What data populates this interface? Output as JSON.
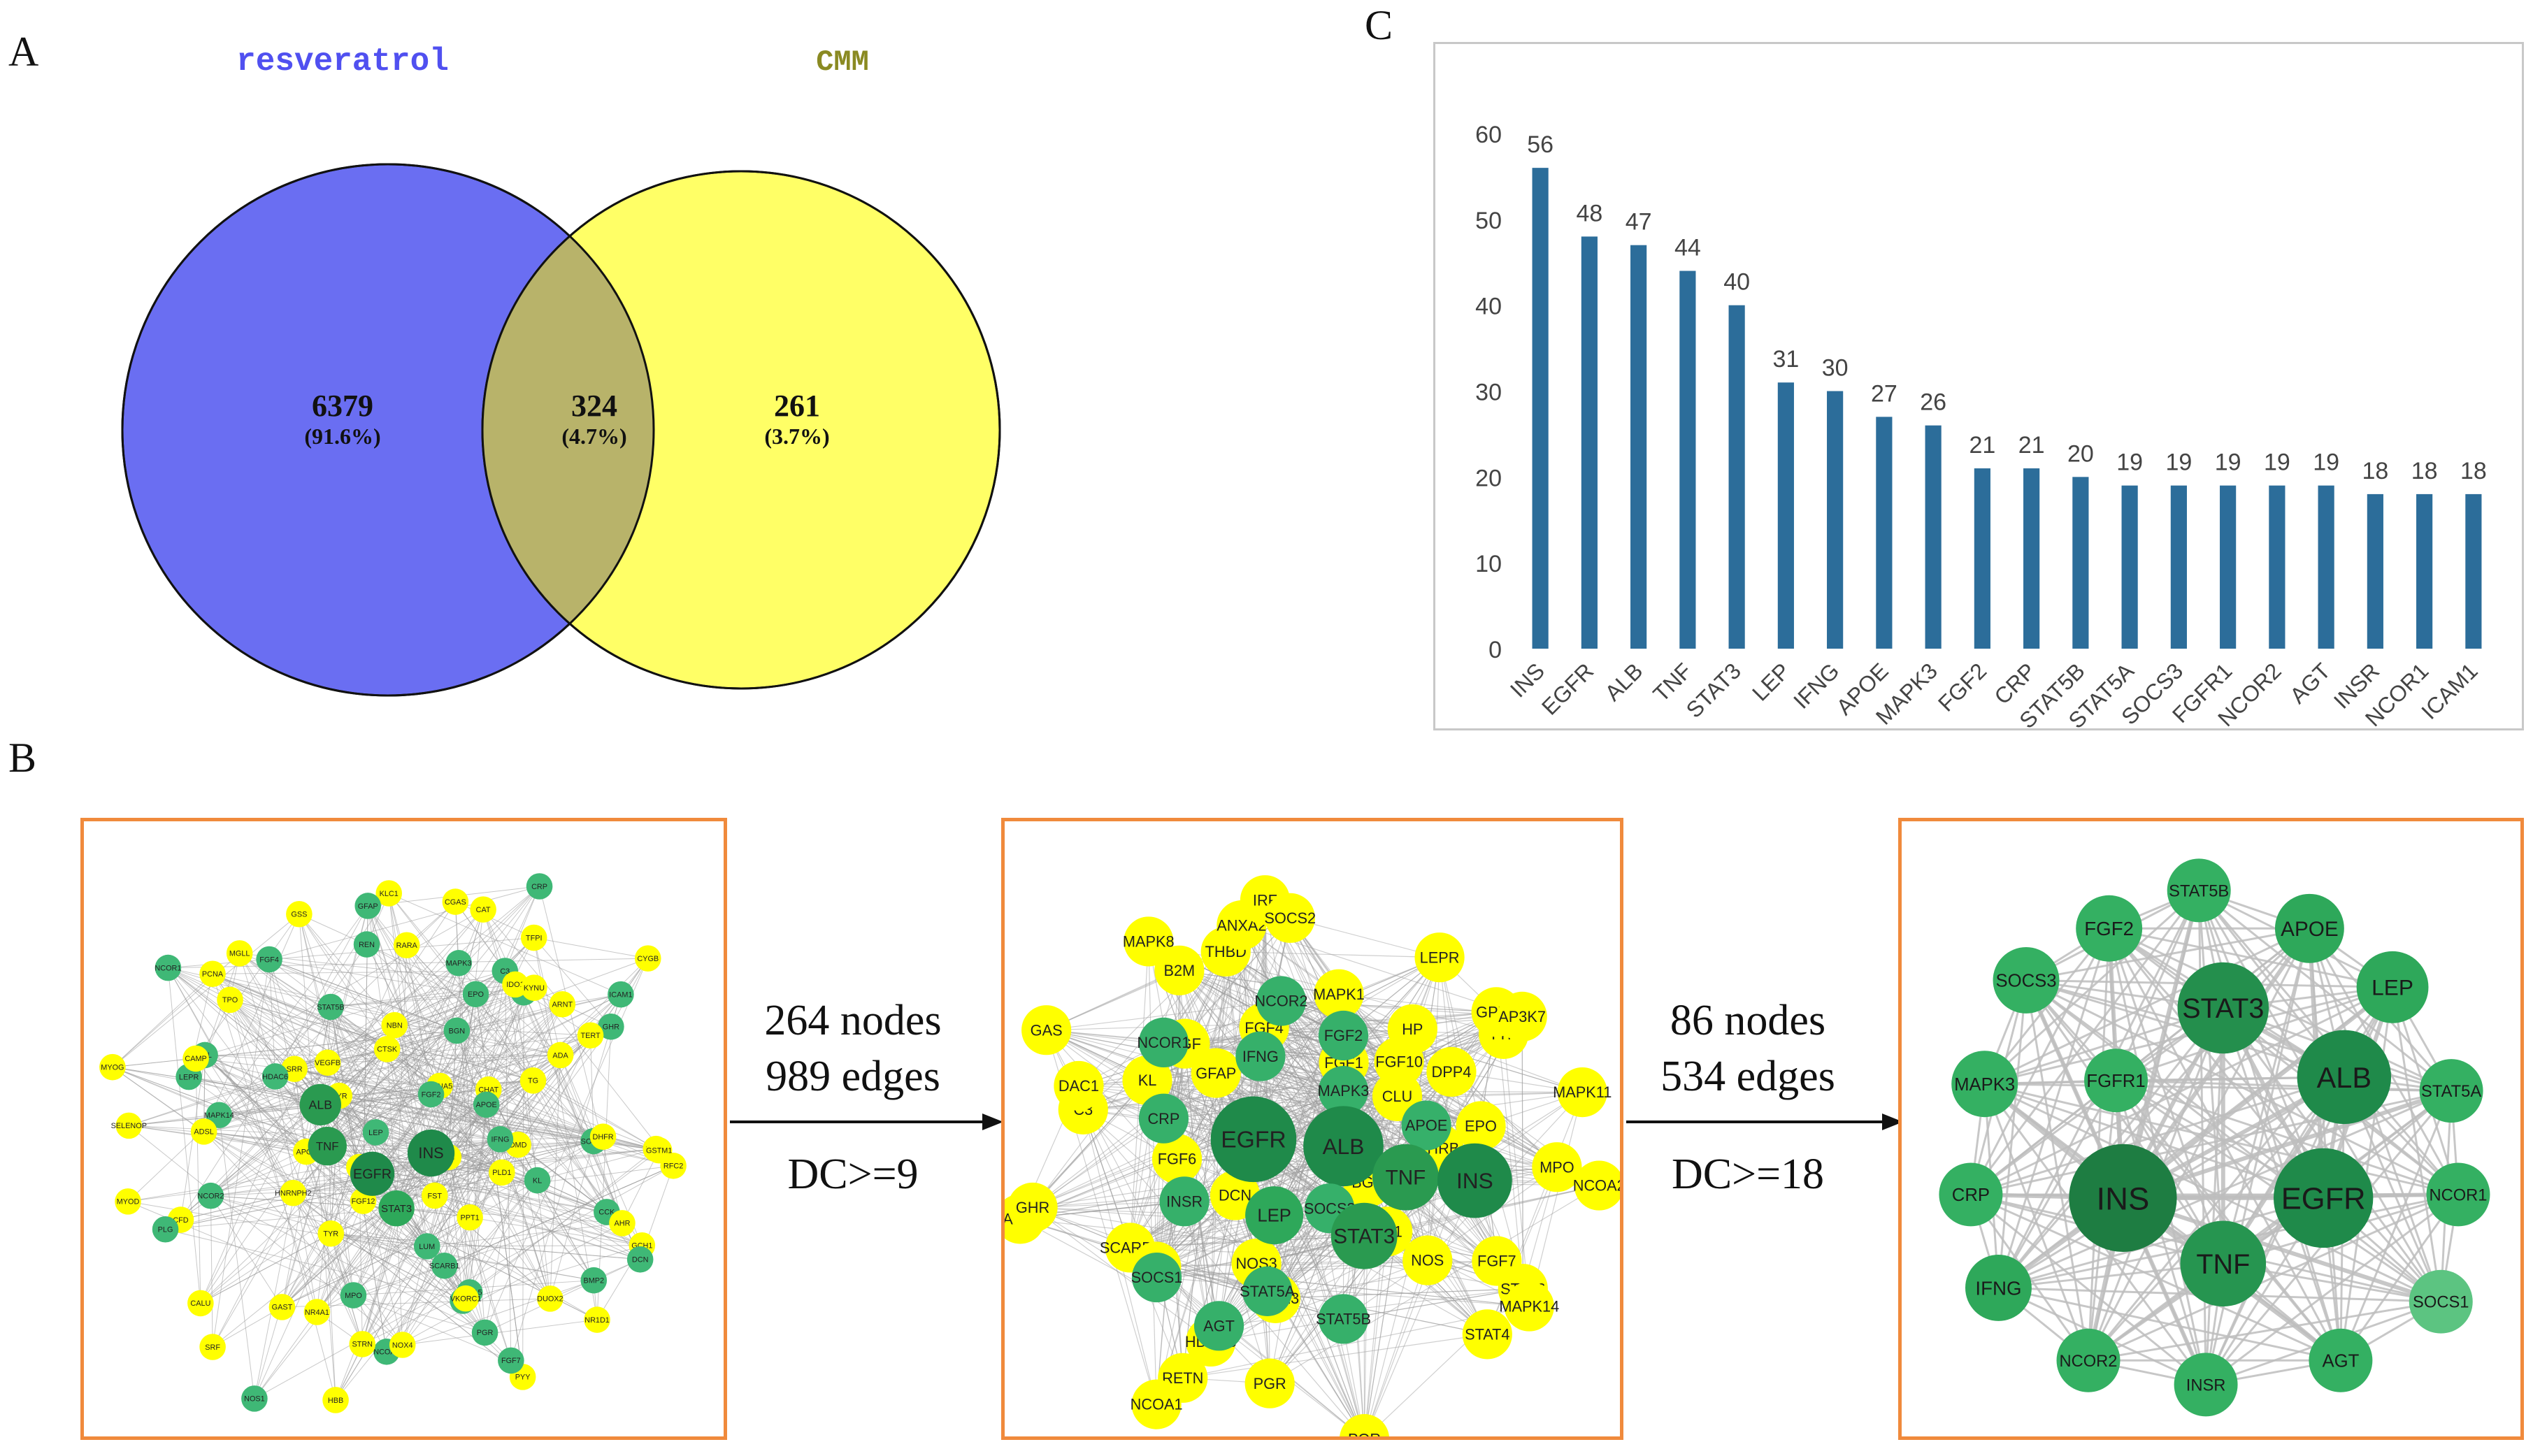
{
  "panels": {
    "a": "A",
    "b": "B",
    "c": "C"
  },
  "venn": {
    "sets": [
      {
        "name": "resveratrol",
        "color": "#6a6ef2"
      },
      {
        "name": "CMM",
        "color": "#ffff66"
      }
    ],
    "regions": [
      {
        "count": "6379",
        "percent": "(91.6%)"
      },
      {
        "count": "324",
        "percent": "(4.7%)"
      },
      {
        "count": "261",
        "percent": "(3.7%)"
      }
    ]
  },
  "networks": {
    "step1": {
      "nodes": "264 nodes",
      "edges": "989 edges",
      "filter": "DC>=9"
    },
    "step2": {
      "nodes": "86 nodes",
      "edges": "534 edges",
      "filter": "DC>=18"
    },
    "net1_labels": [
      "SRI",
      "CA2",
      "KCNA5",
      "FST",
      "RYR",
      "CHAT",
      "FGF12",
      "CTSK",
      "PLD1",
      "APOL",
      "BGN",
      "LUM",
      "VEGFB",
      "DMD",
      "HNRNPH2",
      "NBN",
      "PPT1",
      "SRR",
      "TG",
      "TYR",
      "ALB",
      "KL",
      "FGF2",
      "EPO",
      "SCARB1",
      "HDAC6",
      "TNF",
      "LEP",
      "APOE",
      "IFNG",
      "INS",
      "EGFR",
      "STAT3",
      "STAT5B",
      "SOCS3",
      "NCOR2",
      "C3",
      "TTR",
      "LPL",
      "ADA",
      "MPO",
      "REN",
      "CCK",
      "MAPK14",
      "SOCS1",
      "PGR",
      "TPO",
      "DHFR",
      "GAST",
      "MAPK3",
      "ANXA5",
      "LEPR",
      "GHR",
      "NCOA2",
      "MGLL",
      "NOX1",
      "CFD",
      "IDO1",
      "VKORC1",
      "CAMP",
      "TERT",
      "NR4A1",
      "RARA",
      "GCH1",
      "ADSL",
      "KYNU",
      "NOX4",
      "GSS",
      "GSTM1",
      "CALU",
      "CAT",
      "DUOX2",
      "SELENOP",
      "ARNT",
      "STRN",
      "KLC1",
      "AHR",
      "MYOD",
      "TFPI",
      "PYY",
      "PCNA",
      "RFC2",
      "SRF",
      "CGAS",
      "NR1D1",
      "MYOG",
      "CYGB",
      "HBB",
      "FGF4",
      "DCN",
      "PLG",
      "CRP",
      "FGF7",
      "NCOR1",
      "ICAM1",
      "NOS1",
      "GFAP",
      "BMP2"
    ],
    "net2_labels": [
      "BGN",
      "DCN",
      "FGF1",
      "BMP2",
      "GFAP",
      "CLU",
      "NOS3",
      "FGF4",
      "GF1",
      "FGF6",
      "FGF10",
      "FGF23",
      "HGF",
      "THRB",
      "NCOR2",
      "MAPK1",
      "NOS",
      "KL",
      "DPP4",
      "NCOR1",
      "FGF2",
      "ICAM1",
      "SCARB1",
      "HP",
      "IFNG",
      "MAPK3",
      "EPO",
      "PLG",
      "CRP",
      "EGFR",
      "ALB",
      "APOE",
      "HDAC3",
      "THBD",
      "LEP",
      "SOCS3",
      "TNF",
      "INS",
      "C3",
      "TTR",
      "INSR",
      "ANXA2",
      "FGF7",
      "SOCS1",
      "STAT5A",
      "STAT3",
      "B2M",
      "MPO",
      "AGT",
      "IRF",
      "STAT4",
      "DAC1",
      "GPX3",
      "RETN",
      "STAT5B",
      "STAT6",
      "MAP3K5",
      "LEPR",
      "POR",
      "GAS",
      "MAPK11",
      "NCOA1",
      "SOCS2",
      "MAPK14",
      "GHR",
      "AP3K7",
      "PGR",
      "MAPK8",
      "NCOA2"
    ],
    "net3_labels": [
      "STAT5B",
      "FGF2",
      "APOE",
      "SOCS3",
      "LEP",
      "STAT3",
      "MAPK3",
      "FGFR1",
      "ALB",
      "STAT5A",
      "CRP",
      "INS",
      "EGFR",
      "NCOR1",
      "IFNG",
      "TNF",
      "SOCS1",
      "NCOR2",
      "INSR",
      "AGT"
    ]
  },
  "chart_data": {
    "type": "bar",
    "title": "",
    "xlabel": "",
    "ylabel": "",
    "categories": [
      "INS",
      "EGFR",
      "ALB",
      "TNF",
      "STAT3",
      "LEP",
      "IFNG",
      "APOE",
      "MAPK3",
      "FGF2",
      "CRP",
      "STAT5B",
      "STAT5A",
      "SOCS3",
      "FGFR1",
      "NCOR2",
      "AGT",
      "INSR",
      "NCOR1",
      "ICAM1"
    ],
    "values": [
      56,
      48,
      47,
      44,
      40,
      31,
      30,
      27,
      26,
      21,
      21,
      20,
      19,
      19,
      19,
      19,
      19,
      18,
      18,
      18
    ],
    "data_labels": [
      "56",
      "48",
      "47",
      "44",
      "40",
      "31",
      "30",
      "27",
      "26",
      "21",
      "21",
      "20",
      "19",
      "19",
      "19",
      "19",
      "19",
      "18",
      "18",
      "18"
    ],
    "ylim": [
      0,
      60
    ],
    "yticks": [
      "0",
      "10",
      "20",
      "30",
      "40",
      "50",
      "60"
    ],
    "bar_color": "#2c6d9a",
    "grid": false
  }
}
